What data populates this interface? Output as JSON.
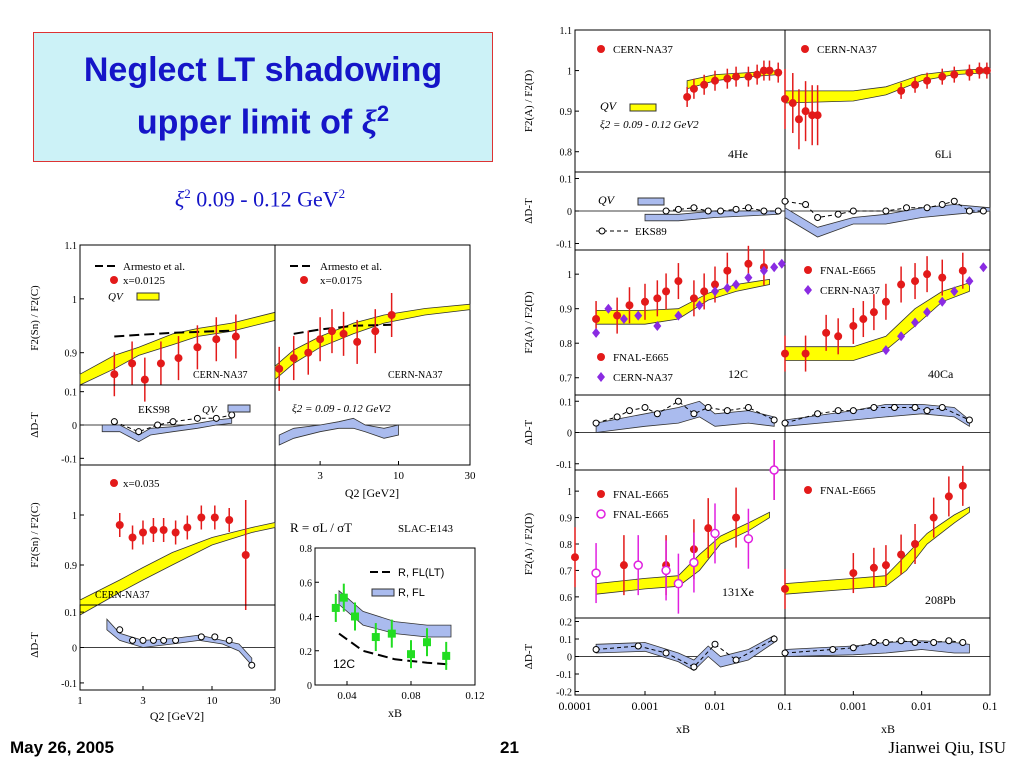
{
  "slide": {
    "title_line1": "Neglect LT shadowing",
    "title_line2": "upper limit of",
    "title_xi": "ξ",
    "title_sup": "2",
    "formula_xi": "ξ",
    "formula_sup": "2",
    "formula_sym": "",
    "formula_value": "0.09 - 0.12 GeV",
    "formula_unit_sup": "2",
    "footer_date": "May 26, 2005",
    "footer_page": "21",
    "footer_author": "Jianwei Qiu, ISU"
  },
  "colors": {
    "title_blue": "#1515c8",
    "band_yellow": "#ffff00",
    "band_blue": "#aabbee",
    "red": "#e31a1a",
    "purple": "#8a2be2",
    "magenta": "#e020e0",
    "green": "#22dd22",
    "line_blue": "#3355cc"
  },
  "chart_data": [
    {
      "id": "sn-c-a",
      "type": "scatter",
      "ylabel": "F2(Sn) / F2(C)",
      "ylim": [
        0.84,
        1.1
      ],
      "yticks": [
        "0.9",
        "1",
        "1.1"
      ],
      "xlim": [
        1,
        10
      ],
      "log_x": true,
      "legend": [
        "Armesto et al.",
        "x=0.0125",
        "QV"
      ],
      "annotation": "CERN-NA37",
      "series": [
        {
          "name": "x=0.0125",
          "x": [
            1.5,
            1.85,
            2.15,
            2.6,
            3.2,
            4.0,
            5.0,
            6.3
          ],
          "y": [
            0.86,
            0.88,
            0.85,
            0.88,
            0.89,
            0.91,
            0.925,
            0.93
          ]
        }
      ],
      "shadow_band": {
        "x": [
          1,
          1.5,
          2,
          3,
          4,
          6,
          10
        ],
        "y_low": [
          0.84,
          0.87,
          0.895,
          0.915,
          0.93,
          0.94,
          0.96
        ],
        "y_high": [
          0.86,
          0.895,
          0.91,
          0.935,
          0.945,
          0.955,
          0.975
        ]
      },
      "armesto": {
        "x": [
          1.5,
          2,
          3,
          5,
          6
        ],
        "y": [
          0.93,
          0.933,
          0.937,
          0.94,
          0.941
        ]
      }
    },
    {
      "id": "sn-c-b",
      "type": "scatter",
      "ylim": [
        0.84,
        1.1
      ],
      "xlim": [
        1.5,
        30
      ],
      "log_x": true,
      "legend": [
        "Armesto et al.",
        "x=0.0175"
      ],
      "annotation": "CERN-NA37",
      "series": [
        {
          "name": "x=0.0175",
          "x": [
            1.6,
            2.0,
            2.5,
            3.0,
            3.6,
            4.3,
            5.3,
            7.0,
            9.0
          ],
          "y": [
            0.87,
            0.89,
            0.9,
            0.925,
            0.94,
            0.935,
            0.92,
            0.94,
            0.97
          ]
        }
      ],
      "shadow_band": {
        "x": [
          1.5,
          2,
          3,
          5,
          8,
          15,
          30
        ],
        "y_low": [
          0.85,
          0.88,
          0.91,
          0.935,
          0.955,
          0.97,
          0.98
        ],
        "y_high": [
          0.875,
          0.905,
          0.93,
          0.955,
          0.97,
          0.982,
          0.99
        ]
      },
      "armesto": {
        "x": [
          2,
          3,
          5,
          9
        ],
        "y": [
          0.935,
          0.943,
          0.95,
          0.952
        ]
      }
    },
    {
      "id": "delta-sn-a",
      "type": "line",
      "ylabel": "ΔD-T",
      "ylim": [
        -0.12,
        0.12
      ],
      "yticks": [
        "0.1",
        "0",
        "-0.1"
      ],
      "legend": [
        "EKS98",
        "QV"
      ],
      "eks98": {
        "x": [
          1.5,
          2,
          2.5,
          3,
          4,
          5,
          6
        ],
        "y": [
          0.01,
          -0.02,
          0.0,
          0.01,
          0.02,
          0.02,
          0.03
        ]
      }
    },
    {
      "id": "delta-sn-b",
      "type": "line",
      "ylim": [
        -0.12,
        0.12
      ],
      "xlim": [
        1.5,
        30
      ],
      "log_x": true,
      "xticks": [
        "3",
        "10",
        "30"
      ],
      "xlabel": "Q2 [GeV2]",
      "annotation": "ξ2 = 0.09 - 0.12 GeV2"
    },
    {
      "id": "sn-c-c",
      "type": "scatter",
      "ylabel": "F2(Sn) / F2(C)",
      "ylim": [
        0.8,
        1.1
      ],
      "yticks": [
        "0.9",
        "1"
      ],
      "legend": [
        "x=0.035"
      ],
      "annotation": "CERN-NA37",
      "series": [
        {
          "name": "x=0.035",
          "x": [
            2.0,
            2.5,
            3.0,
            3.6,
            4.3,
            5.3,
            6.5,
            8.3,
            10.5,
            13.5,
            18.0
          ],
          "y": [
            0.98,
            0.955,
            0.965,
            0.97,
            0.97,
            0.965,
            0.975,
            0.995,
            0.995,
            0.99,
            0.92
          ]
        }
      ]
    },
    {
      "id": "delta-sn-c",
      "type": "line",
      "ylabel": "ΔD-T",
      "ylim": [
        -0.12,
        0.12
      ],
      "yticks": [
        "0.1",
        "0",
        "-0.1"
      ],
      "xlim": [
        1,
        30
      ],
      "log_x": true,
      "xticks": [
        "1",
        "3",
        "10",
        "30"
      ],
      "xlabel": "Q2 [GeV2]"
    },
    {
      "id": "slac-r",
      "type": "scatter",
      "title": "R = σL / σT",
      "annotation": "SLAC-E143",
      "xlim": [
        0.02,
        0.12
      ],
      "ylim": [
        0,
        0.8
      ],
      "xticks": [
        "0.04",
        "0.08",
        "0.12"
      ],
      "yticks": [
        "0",
        "0.2",
        "0.4",
        "0.6",
        "0.8"
      ],
      "xlabel": "xB",
      "legend": [
        "R, FL(LT)",
        "R, FL"
      ],
      "label": "12C",
      "series": [
        {
          "name": "R",
          "x": [
            0.033,
            0.038,
            0.045,
            0.058,
            0.068,
            0.08,
            0.09,
            0.102
          ],
          "y": [
            0.45,
            0.51,
            0.4,
            0.28,
            0.3,
            0.18,
            0.25,
            0.17
          ]
        }
      ]
    }
  ],
  "right_panels": {
    "xticks": [
      "0.0001",
      "0.001",
      "0.01",
      "0.1"
    ],
    "xlabel": "xB",
    "ylabel_f2": "F2(A) / F2(D)",
    "ylabel_delta": "ΔD-T",
    "row1": {
      "yticks": [
        "0.8",
        "0.9",
        "1",
        "1.1"
      ],
      "legend": [
        "CERN-NA37",
        "QV",
        "ξ2 = 0.09 - 0.12 GeV2"
      ],
      "labels": [
        "4He",
        "6Li"
      ]
    },
    "row1_delta": {
      "yticks": [
        "0.1",
        "0",
        "-0.1"
      ],
      "legend": [
        "QV",
        "EKS89"
      ]
    },
    "row2": {
      "yticks": [
        "0.7",
        "0.8",
        "0.9",
        "1"
      ],
      "legend": [
        "FNAL-E665",
        "CERN-NA37"
      ],
      "labels": [
        "12C",
        "40Ca"
      ]
    },
    "row2_delta": {
      "yticks": [
        "0.1",
        "0",
        "-0.1"
      ]
    },
    "row3": {
      "yticks": [
        "0.6",
        "0.7",
        "0.8",
        "0.9",
        "1"
      ],
      "legend_left": [
        "FNAL-E665",
        "FNAL-E665"
      ],
      "legend_right": [
        "FNAL-E665"
      ],
      "labels": [
        "131Xe",
        "208Pb"
      ]
    },
    "row3_delta": {
      "yticks": [
        "0.2",
        "0.1",
        "0",
        "-0.1",
        "-0.2"
      ]
    }
  }
}
